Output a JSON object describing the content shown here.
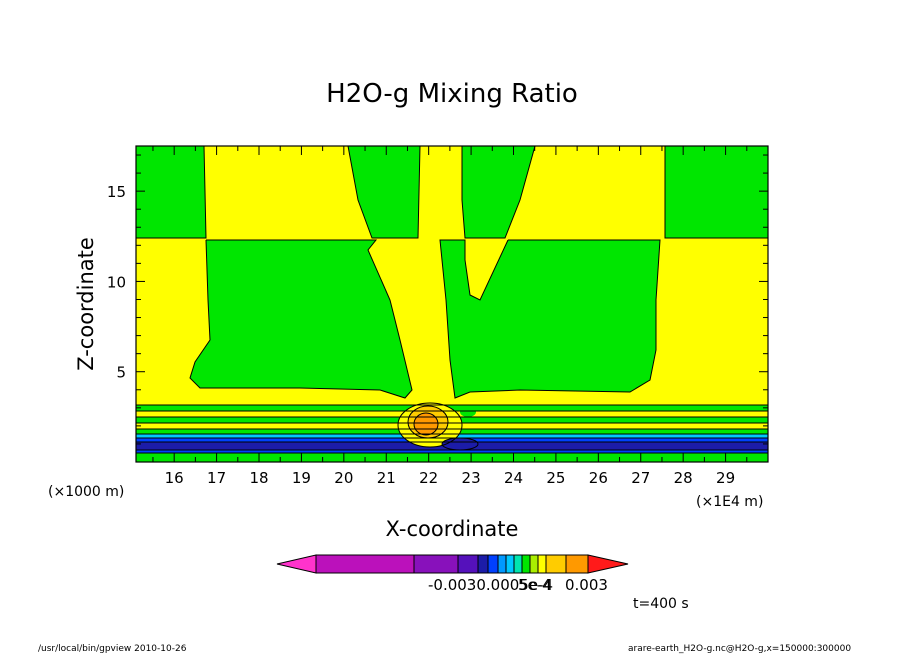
{
  "chart_data": {
    "type": "heatmap",
    "title": "H2O-g Mixing Ratio",
    "xlabel": "X-coordinate",
    "ylabel": "Z-coordinate",
    "y_unit": "(×1000 m)",
    "x_unit": "(×1E4 m)",
    "xlim": [
      15.1,
      30.0
    ],
    "ylim": [
      0.0,
      17.5
    ],
    "x_ticks": [
      "16",
      "17",
      "18",
      "19",
      "20",
      "21",
      "22",
      "23",
      "24",
      "25",
      "26",
      "27",
      "28",
      "29"
    ],
    "y_ticks": [
      "5",
      "10",
      "15"
    ],
    "colorbar_labels": [
      "-0.003",
      "-0.0005",
      "5e-4",
      "0.003"
    ],
    "colorbar_overlap_text": "-0.0030.0005e-4",
    "time_label": "t=400 s",
    "footer_left": "/usr/local/bin/gpview  2010-10-26",
    "footer_right": "arare-earth_H2O-g.nc@H2O-g,x=150000:300000",
    "colors": {
      "green": "#00e600",
      "yellow": "#ffff00",
      "orange": "#ff9900",
      "dark_blue": "#1c1ca8",
      "blue": "#0040ff",
      "cyan": "#00c8ff"
    }
  }
}
